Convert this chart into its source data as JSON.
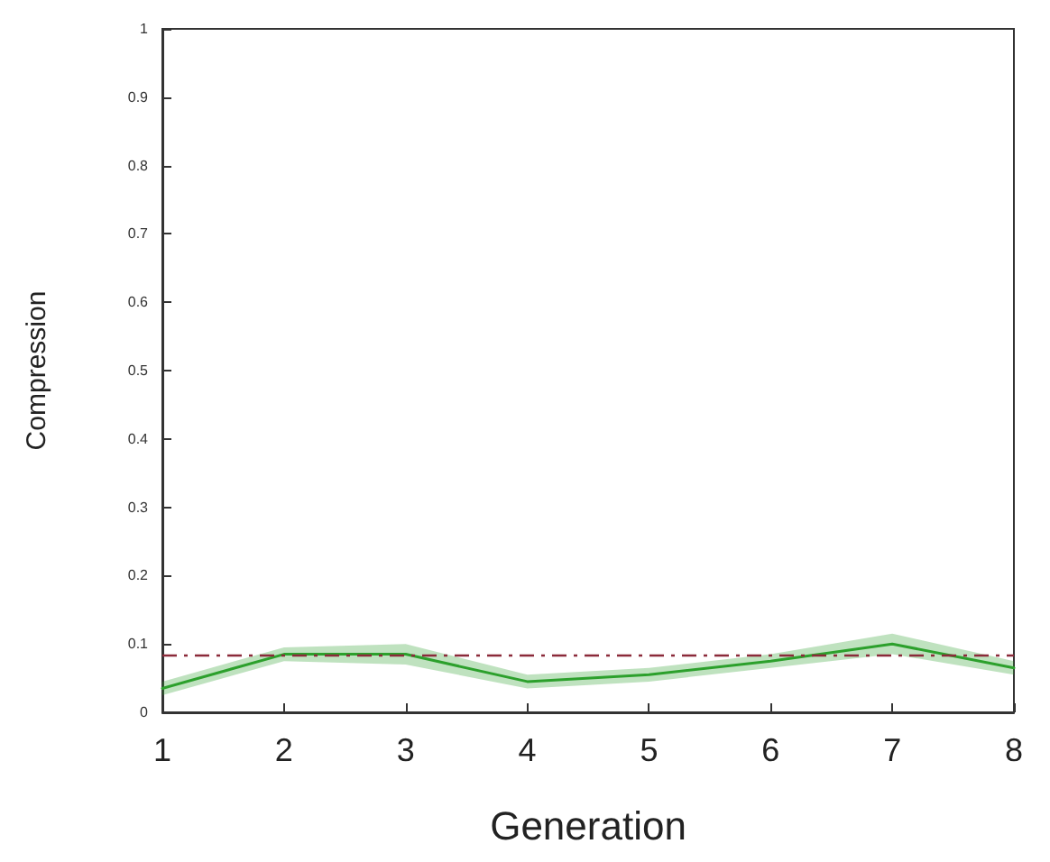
{
  "chart_data": {
    "type": "line",
    "xlabel": "Generation",
    "ylabel": "Compression",
    "x": [
      1,
      2,
      3,
      4,
      5,
      6,
      7,
      8
    ],
    "series": [
      {
        "color": "#2ca02c",
        "values": [
          0.035,
          0.085,
          0.085,
          0.045,
          0.055,
          0.075,
          0.1,
          0.065
        ],
        "lower": [
          0.025,
          0.075,
          0.07,
          0.035,
          0.045,
          0.065,
          0.085,
          0.055
        ],
        "upper": [
          0.045,
          0.095,
          0.1,
          0.055,
          0.065,
          0.085,
          0.115,
          0.075
        ]
      }
    ],
    "xlim": [
      1,
      8
    ],
    "xticks": [
      1,
      2,
      3,
      4,
      5,
      6,
      7,
      8
    ],
    "ylim": [
      0,
      1
    ],
    "yticks": [
      0,
      0.1,
      0.2,
      0.3,
      0.4,
      0.5,
      0.6,
      0.7,
      0.8,
      0.9,
      1
    ],
    "ref_lines": [
      {
        "axis": "y",
        "value": 0.085,
        "color": "#8b2a3a",
        "line_style": "dashed"
      }
    ],
    "grid": false,
    "marker": "none",
    "line_style": "solid"
  }
}
